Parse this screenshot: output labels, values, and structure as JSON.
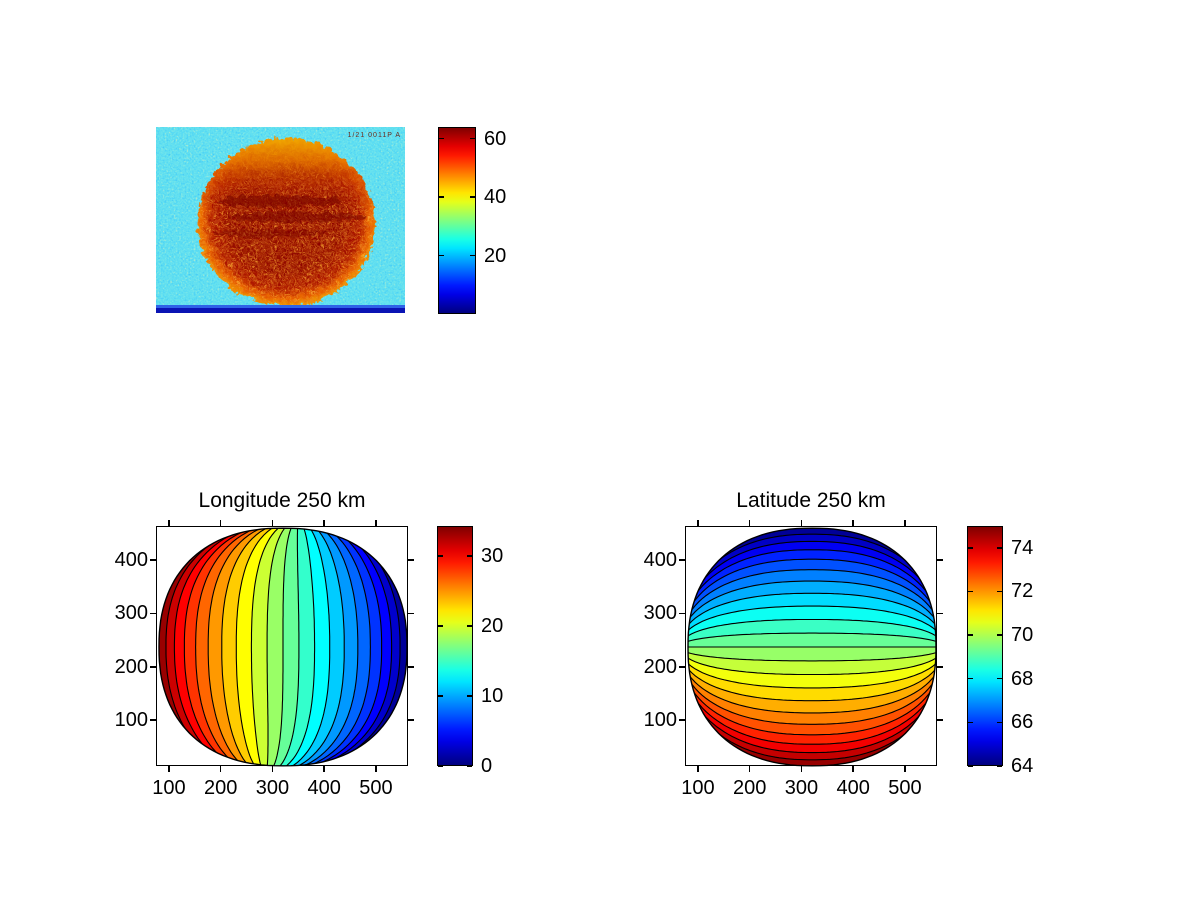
{
  "figure": {
    "background": "#ffffff",
    "description": "MATLAB-style figure: noisy thermal image of a planetary disk with colorbar, plus two filled-contour maps of the disk (longitude and latitude) with colorbars"
  },
  "image_panel": {
    "colors": {
      "sky": "#38c3e6",
      "disk": "#8d0600",
      "rim": "#e85c00",
      "cap": "#f0a800",
      "stripe": "#0a14b4",
      "stripe2": "#2f62e8",
      "ann": "#6a1505"
    }
  },
  "chart_data": [
    {
      "type": "heatmap",
      "title": "",
      "colormap": "jet",
      "colorbar_ticks": [
        20,
        40,
        60
      ],
      "value_range": [
        0,
        64
      ],
      "annotation_text": "1/21 0011P A",
      "regions": [
        {
          "name": "sky background (noisy cyan)",
          "approx_value": 22
        },
        {
          "name": "disk interior (saturated dark red)",
          "approx_value": 63
        },
        {
          "name": "disk limb / north cap (orange-yellow noise)",
          "approx_value": 46
        },
        {
          "name": "warm speckle inside disk",
          "approx_value": 55
        },
        {
          "name": "bottom scan stripe (dark blue rows)",
          "approx_value": 6
        }
      ]
    },
    {
      "type": "contour",
      "title": "Longitude 250 km",
      "xlabel": "",
      "ylabel": "",
      "x_ticks": [
        100,
        200,
        300,
        400,
        500
      ],
      "y_ticks": [
        100,
        200,
        300,
        400
      ],
      "x_range": [
        75,
        562
      ],
      "y_range": [
        14,
        464
      ],
      "colormap": "jet",
      "colorbar_ticks": [
        0,
        10,
        20,
        30
      ],
      "value_range": [
        0,
        34.3
      ],
      "n_bands": 20,
      "orientation": "meridional",
      "value_at_left_limb": 34,
      "value_at_center": 17,
      "value_at_right_limb": 0,
      "legend_position": "right-colorbar",
      "grid": false
    },
    {
      "type": "contour",
      "title": "Latitude 250 km",
      "xlabel": "",
      "ylabel": "",
      "x_ticks": [
        100,
        200,
        300,
        400,
        500
      ],
      "y_ticks": [
        100,
        200,
        300,
        400
      ],
      "x_range": [
        75,
        562
      ],
      "y_range": [
        14,
        464
      ],
      "colormap": "jet",
      "colorbar_ticks": [
        64,
        66,
        68,
        70,
        72,
        74
      ],
      "value_range": [
        64,
        75
      ],
      "n_bands": 22,
      "orientation": "zonal",
      "value_at_top_limb": 64,
      "value_at_center": 69.5,
      "value_at_bottom_limb": 75,
      "legend_position": "right-colorbar",
      "grid": false
    }
  ]
}
